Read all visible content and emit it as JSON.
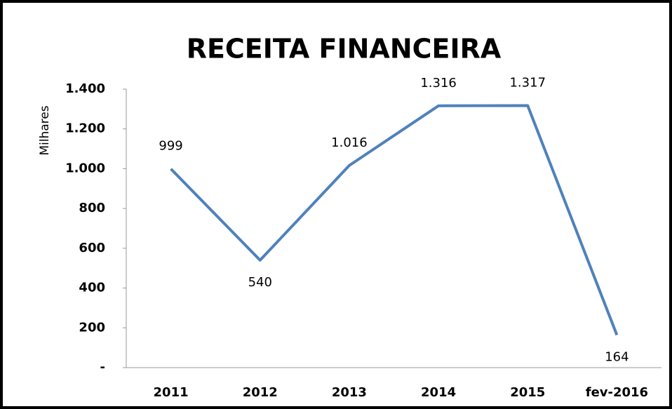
{
  "chart_data": {
    "type": "line",
    "title": "RECEITA FINANCEIRA",
    "y_label": "Milhares",
    "categories": [
      "2011",
      "2012",
      "2013",
      "2014",
      "2015",
      "fev-2016"
    ],
    "series": [
      {
        "name": "Receita Financeira",
        "color": "#4f81bd",
        "values": [
          999,
          540,
          1016,
          1316,
          1317,
          164
        ],
        "value_labels": [
          "999",
          "540",
          "1.016",
          "1.316",
          "1.317",
          "164"
        ]
      }
    ],
    "ylim": [
      0,
      1400
    ],
    "yticks": [
      {
        "value": 0,
        "label": "-"
      },
      200,
      400,
      600,
      800,
      {
        "value": 1000,
        "label": "1.000"
      },
      {
        "value": 1200,
        "label": "1.200"
      },
      {
        "value": 1400,
        "label": "1.400"
      }
    ],
    "grid": false
  }
}
